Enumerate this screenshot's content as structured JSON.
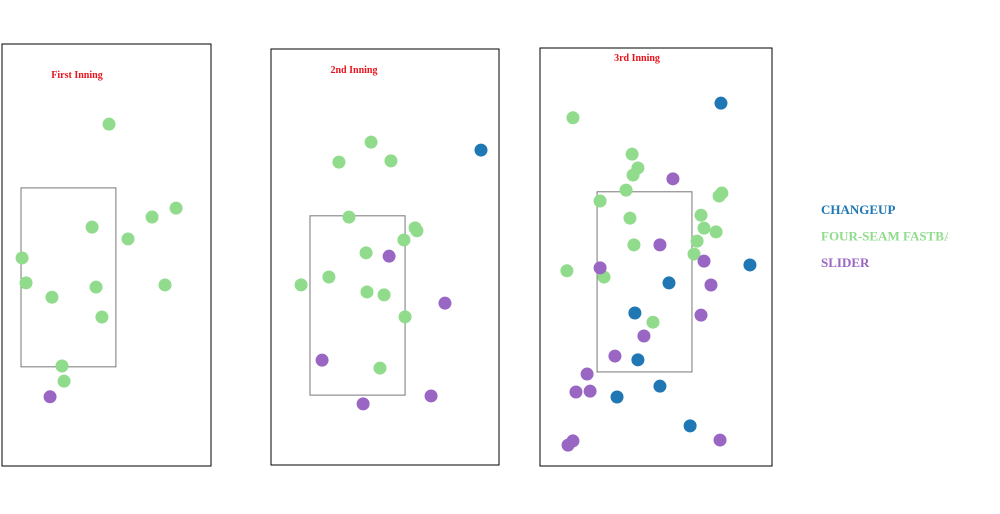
{
  "chart_data": [
    {
      "type": "scatter",
      "title": "First Inning",
      "xlim": [
        0,
        100
      ],
      "ylim": [
        0,
        100
      ],
      "strike_zone": {
        "x": [
          9.1,
          54.5
        ],
        "y": [
          23.5,
          65.9
        ]
      },
      "series": [
        {
          "name": "FOUR-SEAM FASTBALL",
          "color": "#90dc8c",
          "x": [
            51.2,
            43.1,
            71.8,
            83.3,
            60.3,
            9.6,
            11.5,
            23.9,
            45.0,
            78.0,
            47.8,
            28.7,
            29.7
          ],
          "values": [
            81.0,
            56.6,
            59.0,
            61.1,
            53.8,
            49.3,
            43.4,
            40.0,
            42.4,
            42.9,
            35.3,
            23.7,
            20.1
          ]
        },
        {
          "name": "SLIDER",
          "color": "#9966c4",
          "x": [
            23.0
          ],
          "values": [
            16.4
          ]
        }
      ]
    },
    {
      "type": "scatter",
      "title": "2nd Inning",
      "xlim": [
        0,
        100
      ],
      "ylim": [
        0,
        100
      ],
      "strike_zone": {
        "x": [
          17.1,
          58.8
        ],
        "y": [
          16.8,
          59.9
        ]
      },
      "series": [
        {
          "name": "CHANGEUP",
          "color": "#1f77b4",
          "x": [
            92.1
          ],
          "values": [
            75.7
          ]
        },
        {
          "name": "FOUR-SEAM FASTBALL",
          "color": "#90dc8c",
          "x": [
            43.9,
            29.8,
            52.6,
            34.2,
            63.2,
            64.0,
            58.3,
            41.7,
            25.4,
            13.2,
            42.1,
            49.6,
            58.8,
            47.8
          ],
          "values": [
            77.6,
            72.8,
            73.1,
            59.6,
            57.0,
            56.3,
            54.1,
            51.0,
            45.2,
            43.3,
            41.6,
            40.9,
            35.6,
            23.3
          ]
        },
        {
          "name": "SLIDER",
          "color": "#9966c4",
          "x": [
            51.8,
            76.3,
            22.4,
            40.4,
            70.2
          ],
          "values": [
            50.2,
            38.9,
            25.2,
            14.7,
            16.6
          ]
        }
      ]
    },
    {
      "type": "scatter",
      "title": "3rd Inning",
      "xlim": [
        0,
        100
      ],
      "ylim": [
        0,
        100
      ],
      "strike_zone": {
        "x": [
          24.6,
          65.5
        ],
        "y": [
          22.5,
          65.6
        ]
      },
      "series": [
        {
          "name": "CHANGEUP",
          "color": "#1f77b4",
          "x": [
            78.0,
            90.5,
            55.6,
            40.9,
            42.2,
            51.7,
            33.2,
            64.7
          ],
          "values": [
            86.8,
            48.1,
            43.8,
            36.6,
            25.4,
            19.1,
            16.5,
            9.6
          ]
        },
        {
          "name": "FOUR-SEAM FASTBALL",
          "color": "#90dc8c",
          "x": [
            14.2,
            39.7,
            42.2,
            40.1,
            37.1,
            25.9,
            78.4,
            77.2,
            38.8,
            69.4,
            70.7,
            75.9,
            40.5,
            67.7,
            66.4,
            11.6,
            27.6,
            48.7
          ],
          "values": [
            83.3,
            74.6,
            71.3,
            69.6,
            66.0,
            63.4,
            65.3,
            64.6,
            59.3,
            60.0,
            56.9,
            56.0,
            52.9,
            53.8,
            50.7,
            46.7,
            45.2,
            34.4
          ]
        },
        {
          "name": "SLIDER",
          "color": "#9966c4",
          "x": [
            57.3,
            51.7,
            70.7,
            25.9,
            73.7,
            69.4,
            44.8,
            32.3,
            20.3,
            15.5,
            21.6,
            14.2,
            12.1,
            77.6
          ],
          "values": [
            68.7,
            52.9,
            49.0,
            47.4,
            43.3,
            36.1,
            31.1,
            26.3,
            22.0,
            17.7,
            17.9,
            6.0,
            5.0,
            6.2
          ]
        }
      ]
    }
  ]
}
